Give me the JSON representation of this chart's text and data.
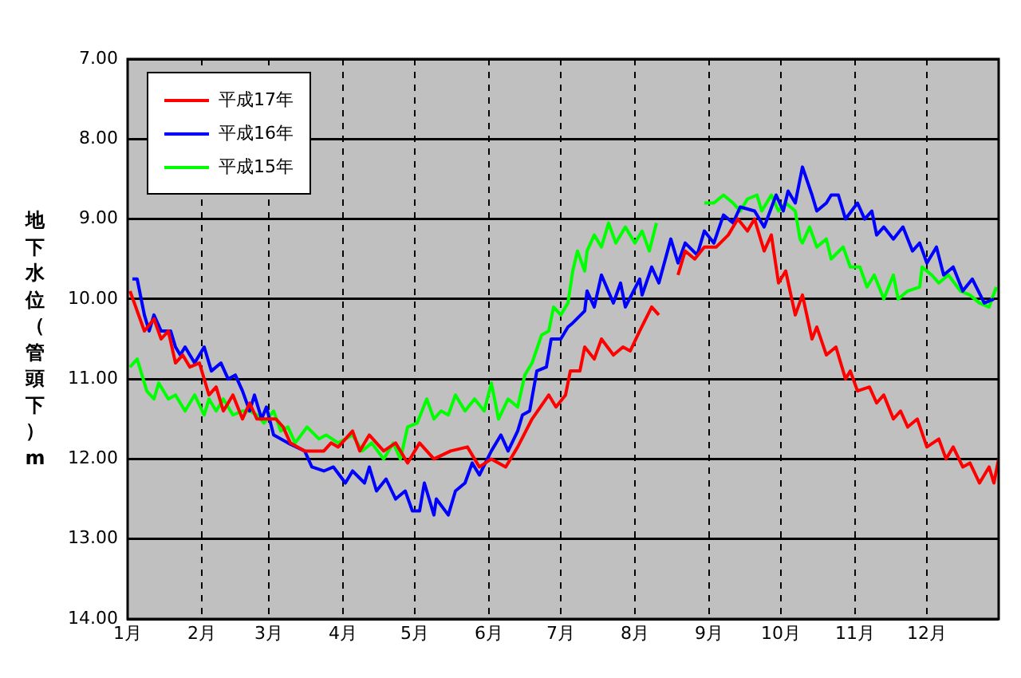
{
  "chart_data": {
    "type": "line",
    "ylabel": "地下水位（管頭下）m",
    "xlim": [
      "--01-01",
      "--12-31"
    ],
    "xticks": [
      {
        "value": "--01-01",
        "label": "1月"
      },
      {
        "value": "--02-01",
        "label": "2月"
      },
      {
        "value": "--03-01",
        "label": "3月"
      },
      {
        "value": "--04-01",
        "label": "4月"
      },
      {
        "value": "--05-01",
        "label": "5月"
      },
      {
        "value": "--06-01",
        "label": "6月"
      },
      {
        "value": "--07-01",
        "label": "7月"
      },
      {
        "value": "--08-01",
        "label": "8月"
      },
      {
        "value": "--09-01",
        "label": "9月"
      },
      {
        "value": "--10-01",
        "label": "10月"
      },
      {
        "value": "--11-01",
        "label": "11月"
      },
      {
        "value": "--12-01",
        "label": "12月"
      }
    ],
    "ylim": [
      14,
      7
    ],
    "yticks": [
      {
        "value": 7,
        "label": "7.00"
      },
      {
        "value": 8,
        "label": "8.00"
      },
      {
        "value": 9,
        "label": "9.00"
      },
      {
        "value": 10,
        "label": "10.00"
      },
      {
        "value": 11,
        "label": "11.00"
      },
      {
        "value": 12,
        "label": "12.00"
      },
      {
        "value": 13,
        "label": "13.00"
      },
      {
        "value": 14,
        "label": "14.00"
      }
    ],
    "grid": true,
    "legend": "top left",
    "series": [
      {
        "name": "平成17年",
        "color": "#ff0000",
        "x": [
          "--01-02",
          "--01-08",
          "--01-12",
          "--01-15",
          "--01-18",
          "--01-21",
          "--01-24",
          "--01-27",
          "--01-31",
          "--02-04",
          "--02-07",
          "--02-10",
          "--02-14",
          "--02-18",
          "--02-21",
          "--02-24",
          "--03-04",
          "--03-07",
          "--03-10",
          "--03-16",
          "--03-24",
          "--03-27",
          "--03-30",
          "--04-05",
          "--04-08",
          "--04-12",
          "--04-18",
          "--04-23",
          "--04-28",
          "--05-03",
          "--05-09",
          "--05-16",
          "--05-23",
          "--05-28",
          "--06-02",
          "--06-08",
          "--06-13",
          "--06-19",
          "--06-26",
          "--06-29",
          "--07-03",
          "--07-05",
          "--07-09",
          "--07-11",
          "--07-15",
          "--07-18",
          "--07-23",
          "--07-27",
          "--07-30",
          "--08-03",
          "--08-08",
          "--08-11",
          "--08-15",
          "--08-19",
          "--08-22",
          "--08-26",
          "--08-30",
          "--09-04",
          "--09-09",
          "--09-13",
          "--09-17",
          "--09-20",
          "--09-24",
          "--09-27",
          "--09-30",
          "--10-03",
          "--10-07",
          "--10-10",
          "--10-14",
          "--10-16",
          "--10-20",
          "--10-24",
          "--10-28",
          "--10-30",
          "--11-02",
          "--11-07",
          "--11-10",
          "--11-13",
          "--11-17",
          "--11-20",
          "--11-23",
          "--11-27",
          "--12-01",
          "--12-06",
          "--12-09",
          "--12-12",
          "--12-16",
          "--12-19",
          "--12-23",
          "--12-27",
          "--12-29",
          "--12-31"
        ],
        "values": [
          9.9,
          10.4,
          10.25,
          10.5,
          10.4,
          10.8,
          10.7,
          10.85,
          10.8,
          11.2,
          11.1,
          11.4,
          11.2,
          11.5,
          11.3,
          11.5,
          11.5,
          11.6,
          11.8,
          11.9,
          11.9,
          11.8,
          11.85,
          11.65,
          11.9,
          11.7,
          11.9,
          11.8,
          12.05,
          11.8,
          12.0,
          11.9,
          11.85,
          12.1,
          12.0,
          12.1,
          11.85,
          11.5,
          11.2,
          11.35,
          11.2,
          10.9,
          10.9,
          10.6,
          10.75,
          10.5,
          10.7,
          10.6,
          10.65,
          10.4,
          10.1,
          10.2,
          null,
          9.7,
          9.4,
          9.5,
          9.35,
          9.35,
          9.2,
          9.0,
          9.15,
          9.0,
          9.4,
          9.2,
          9.8,
          9.65,
          10.2,
          9.95,
          10.5,
          10.35,
          10.7,
          10.6,
          11.0,
          10.9,
          11.15,
          11.1,
          11.3,
          11.2,
          11.5,
          11.4,
          11.6,
          11.5,
          11.85,
          11.75,
          12.0,
          11.85,
          12.1,
          12.05,
          12.3,
          12.1,
          12.3,
          12.0
        ]
      },
      {
        "name": "平成16年",
        "color": "#0000ff",
        "x": [
          "--01-03",
          "--01-05",
          "--01-08",
          "--01-10",
          "--01-12",
          "--01-15",
          "--01-19",
          "--01-21",
          "--01-23",
          "--01-25",
          "--01-29",
          "--02-02",
          "--02-05",
          "--02-09",
          "--02-12",
          "--02-15",
          "--02-18",
          "--02-21",
          "--02-23",
          "--02-26",
          "--02-28",
          "--03-03",
          "--03-09",
          "--03-16",
          "--03-19",
          "--03-24",
          "--03-28",
          "--04-02",
          "--04-05",
          "--04-10",
          "--04-12",
          "--04-15",
          "--04-19",
          "--04-23",
          "--04-27",
          "--04-30",
          "--05-03",
          "--05-05",
          "--05-09",
          "--05-10",
          "--05-15",
          "--05-18",
          "--05-22",
          "--05-25",
          "--05-28",
          "--06-02",
          "--06-06",
          "--06-09",
          "--06-13",
          "--06-15",
          "--06-18",
          "--06-21",
          "--06-25",
          "--06-27",
          "--07-01",
          "--07-04",
          "--07-06",
          "--07-11",
          "--07-12",
          "--07-15",
          "--07-18",
          "--07-23",
          "--07-26",
          "--07-28",
          "--08-03",
          "--08-04",
          "--08-08",
          "--08-11",
          "--08-16",
          "--08-19",
          "--08-22",
          "--08-27",
          "--08-30",
          "--09-03",
          "--09-07",
          "--09-11",
          "--09-14",
          "--09-20",
          "--09-24",
          "--09-29",
          "--10-02",
          "--10-04",
          "--10-07",
          "--10-10",
          "--10-14",
          "--10-16",
          "--10-20",
          "--10-22",
          "--10-25",
          "--10-28",
          "--11-02",
          "--11-05",
          "--11-08",
          "--11-10",
          "--11-13",
          "--11-17",
          "--11-21",
          "--11-25",
          "--11-28",
          "--12-01",
          "--12-05",
          "--12-08",
          "--12-12",
          "--12-16",
          "--12-20",
          "--12-25",
          "--12-29"
        ],
        "values": [
          9.75,
          9.75,
          10.2,
          10.4,
          10.2,
          10.4,
          10.4,
          10.6,
          10.7,
          10.6,
          10.8,
          10.6,
          10.9,
          10.8,
          11.0,
          10.95,
          11.15,
          11.4,
          11.2,
          11.5,
          11.35,
          11.7,
          11.8,
          11.9,
          12.1,
          12.15,
          12.1,
          12.3,
          12.15,
          12.3,
          12.1,
          12.4,
          12.25,
          12.5,
          12.4,
          12.65,
          12.65,
          12.3,
          12.7,
          12.5,
          12.7,
          12.4,
          12.3,
          12.05,
          12.2,
          11.9,
          11.7,
          11.9,
          11.65,
          11.45,
          11.4,
          10.9,
          10.85,
          10.5,
          10.5,
          10.35,
          10.3,
          10.15,
          9.9,
          10.1,
          9.7,
          10.05,
          9.8,
          10.1,
          9.75,
          9.95,
          9.6,
          9.8,
          9.25,
          9.55,
          9.3,
          9.45,
          9.15,
          9.3,
          8.95,
          9.05,
          8.85,
          8.9,
          9.1,
          8.7,
          8.9,
          8.65,
          8.8,
          8.35,
          8.7,
          8.9,
          8.8,
          8.7,
          8.7,
          9.0,
          8.8,
          9.0,
          8.9,
          9.2,
          9.1,
          9.25,
          9.1,
          9.4,
          9.3,
          9.55,
          9.35,
          9.7,
          9.6,
          9.9,
          9.75,
          10.05,
          10.0
        ]
      },
      {
        "name": "平成15年",
        "color": "#00ff00",
        "x": [
          "--01-02",
          "--01-05",
          "--01-09",
          "--01-12",
          "--01-14",
          "--01-18",
          "--01-21",
          "--01-25",
          "--01-29",
          "--02-02",
          "--02-04",
          "--02-07",
          "--02-10",
          "--02-14",
          "--02-18",
          "--02-21",
          "--02-24",
          "--02-27",
          "--03-03",
          "--03-06",
          "--03-09",
          "--03-12",
          "--03-17",
          "--03-22",
          "--03-25",
          "--03-30",
          "--04-05",
          "--04-09",
          "--04-13",
          "--04-18",
          "--04-22",
          "--04-25",
          "--04-28",
          "--05-02",
          "--05-06",
          "--05-09",
          "--05-12",
          "--05-15",
          "--05-18",
          "--05-22",
          "--05-26",
          "--05-30",
          "--06-02",
          "--06-05",
          "--06-09",
          "--06-13",
          "--06-16",
          "--06-19",
          "--06-23",
          "--06-26",
          "--06-28",
          "--07-01",
          "--07-04",
          "--07-06",
          "--07-08",
          "--07-11",
          "--07-12",
          "--07-15",
          "--07-18",
          "--07-21",
          "--07-24",
          "--07-28",
          "--08-01",
          "--08-04",
          "--08-07",
          "--08-10",
          "--08-19",
          "--08-30",
          "--09-03",
          "--09-07",
          "--09-11",
          "--09-14",
          "--09-17",
          "--09-21",
          "--09-23",
          "--09-27",
          "--09-30",
          "--10-03",
          "--10-07",
          "--10-09",
          "--10-10",
          "--10-13",
          "--10-16",
          "--10-20",
          "--10-22",
          "--10-27",
          "--10-30",
          "--11-03",
          "--11-06",
          "--11-09",
          "--11-13",
          "--11-17",
          "--11-19",
          "--11-23",
          "--11-28",
          "--11-29",
          "--12-03",
          "--12-06",
          "--12-10",
          "--12-15",
          "--12-19",
          "--12-23",
          "--12-27",
          "--12-30"
        ],
        "values": [
          10.85,
          10.75,
          11.15,
          11.25,
          11.05,
          11.25,
          11.2,
          11.4,
          11.2,
          11.45,
          11.25,
          11.4,
          11.25,
          11.45,
          11.4,
          11.4,
          11.45,
          11.55,
          11.4,
          11.65,
          11.6,
          11.8,
          11.6,
          11.75,
          11.7,
          11.8,
          11.7,
          11.9,
          11.8,
          12.0,
          11.8,
          12.0,
          11.6,
          11.55,
          11.25,
          11.5,
          11.4,
          11.45,
          11.2,
          11.4,
          11.25,
          11.4,
          11.05,
          11.5,
          11.25,
          11.35,
          10.95,
          10.8,
          10.45,
          10.4,
          10.1,
          10.2,
          10.05,
          9.65,
          9.4,
          9.65,
          9.4,
          9.2,
          9.35,
          9.05,
          9.3,
          9.1,
          9.3,
          9.15,
          9.4,
          9.05,
          null,
          8.8,
          8.8,
          8.7,
          8.8,
          8.9,
          8.75,
          8.7,
          8.9,
          8.7,
          8.9,
          8.8,
          8.9,
          9.25,
          9.3,
          9.1,
          9.35,
          9.25,
          9.5,
          9.35,
          9.6,
          9.6,
          9.85,
          9.7,
          10.0,
          9.7,
          10.0,
          9.9,
          9.85,
          9.6,
          9.7,
          9.8,
          9.7,
          9.9,
          9.95,
          10.05,
          10.1,
          9.85
        ]
      }
    ]
  }
}
